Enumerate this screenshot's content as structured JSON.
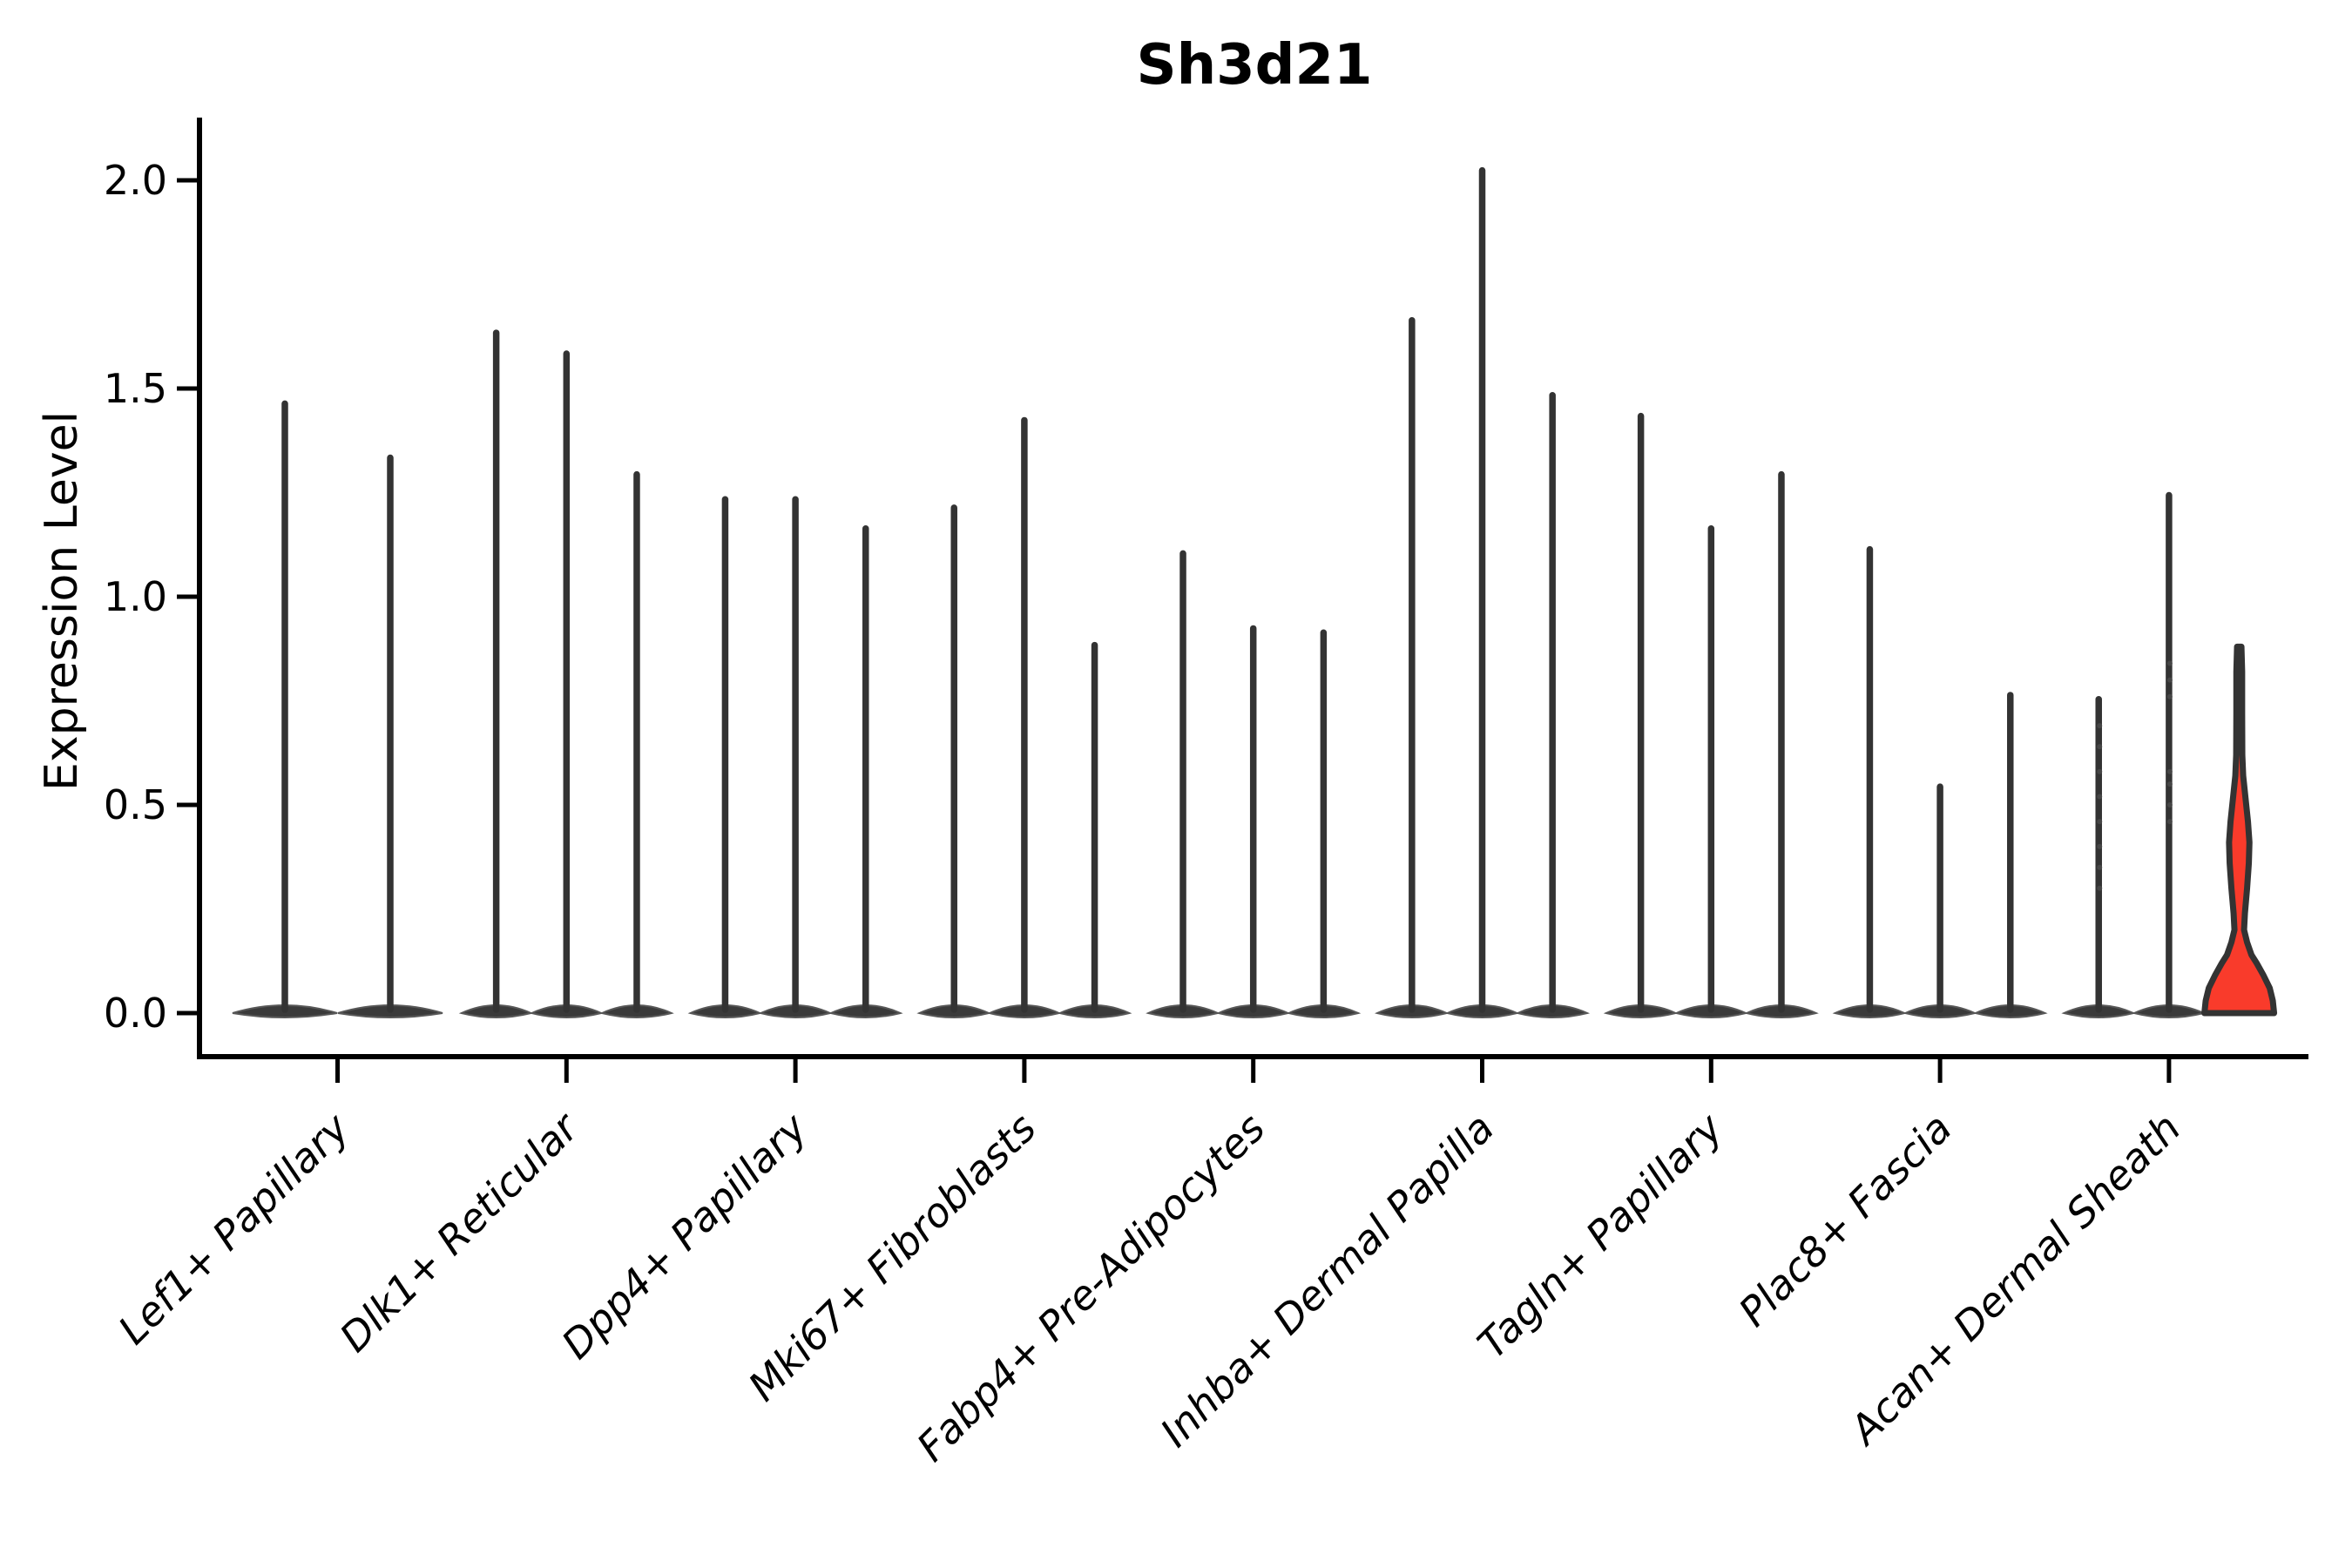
{
  "title": "Sh3d21",
  "axes": {
    "ylabel": "Expression Level",
    "ytick_labels": [
      "0.0",
      "0.5",
      "1.0",
      "1.5",
      "2.0"
    ]
  },
  "colors": {
    "violin_edge": "#333333",
    "violin_base_fill": "#3a3a3a",
    "highlight_fill": "#f93b2b",
    "axis": "#000000",
    "background": "#ffffff"
  },
  "chart_data": {
    "type": "violin",
    "title": "Sh3d21",
    "xlabel": "",
    "ylabel": "Expression Level",
    "ylim": [
      0,
      2.15
    ],
    "yticks": [
      0,
      0.5,
      1.0,
      1.5,
      2.0
    ],
    "grid": false,
    "legend": "none",
    "xtick_rotation": 45,
    "categories": [
      "Lef1+ Papillary",
      "Dlk1+ Reticular",
      "Dpp4+ Papillary",
      "Mki67+ Fibroblasts",
      "Fabp4+ Pre-Adipocytes",
      "Inhba+ Dermal Papilla",
      "Tagln+ Papillary",
      "Plac8+ Fascia",
      "Acan+ Dermal Sheath"
    ],
    "description": "Violin plot of Sh3d21 expression per fibroblast cluster; most violins collapse to a flat base at 0 with a thin density spike up to the max expression value; only the last violin of Acan+ Dermal Sheath has a visible red-filled density bulge.",
    "groups": [
      {
        "label": "Lef1+ Papillary",
        "violins": [
          {
            "max": 1.47
          },
          {
            "max": 1.34
          }
        ]
      },
      {
        "label": "Dlk1+ Reticular",
        "violins": [
          {
            "max": 1.64
          },
          {
            "max": 1.59
          },
          {
            "max": 1.3
          }
        ]
      },
      {
        "label": "Dpp4+ Papillary",
        "violins": [
          {
            "max": 1.24
          },
          {
            "max": 1.24
          },
          {
            "max": 1.17
          }
        ]
      },
      {
        "label": "Mki67+ Fibroblasts",
        "violins": [
          {
            "max": 1.22
          },
          {
            "max": 1.43
          },
          {
            "max": 0.89
          }
        ]
      },
      {
        "label": "Fabp4+ Pre-Adipocytes",
        "violins": [
          {
            "max": 1.11
          },
          {
            "max": 0.93
          },
          {
            "max": 0.92
          }
        ]
      },
      {
        "label": "Inhba+ Dermal Papilla",
        "violins": [
          {
            "max": 1.67
          },
          {
            "max": 2.03
          },
          {
            "max": 1.49
          }
        ]
      },
      {
        "label": "Tagln+ Papillary",
        "violins": [
          {
            "max": 1.44
          },
          {
            "max": 1.17
          },
          {
            "max": 1.3
          }
        ]
      },
      {
        "label": "Plac8+ Fascia",
        "violins": [
          {
            "max": 1.12
          },
          {
            "max": 0.55
          },
          {
            "max": 0.77
          }
        ]
      },
      {
        "label": "Acan+ Dermal Sheath",
        "violins": [
          {
            "max": 0.76,
            "dots": [
              0.3,
              0.35,
              0.4,
              0.46,
              0.52,
              0.58,
              0.64,
              0.69
            ]
          },
          {
            "max": 1.25,
            "dots": [
              0.46,
              0.5,
              0.55,
              0.58,
              0.76,
              0.8,
              0.84
            ]
          },
          {
            "max": 0.88,
            "highlight": true
          }
        ]
      }
    ],
    "highlight_profile": [
      [
        0.0,
        40.0
      ],
      [
        0.03,
        38.5
      ],
      [
        0.06,
        35.0
      ],
      [
        0.09,
        28.0
      ],
      [
        0.12,
        20.0
      ],
      [
        0.14,
        14.0
      ],
      [
        0.17,
        9.0
      ],
      [
        0.2,
        5.5
      ],
      [
        0.24,
        6.5
      ],
      [
        0.3,
        9.0
      ],
      [
        0.36,
        11.0
      ],
      [
        0.41,
        11.7
      ],
      [
        0.46,
        10.0
      ],
      [
        0.52,
        7.0
      ],
      [
        0.57,
        4.5
      ],
      [
        0.62,
        3.5
      ],
      [
        0.72,
        3.3
      ],
      [
        0.82,
        3.3
      ],
      [
        0.88,
        2.5
      ]
    ]
  }
}
